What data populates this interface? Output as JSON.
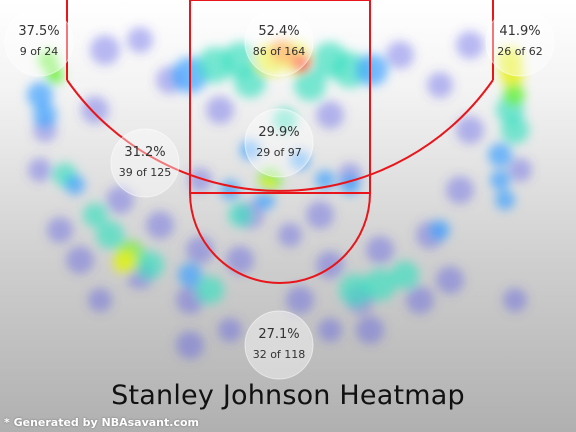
{
  "chart_data": {
    "type": "heatmap",
    "title": "Stanley Johnson Heatmap",
    "credit": "* Generated by NBAsavant.com",
    "scale_colors": [
      "#4a4ae8",
      "#3aa0ff",
      "#3ee0c0",
      "#6cf040",
      "#e8f020",
      "#ff9020",
      "#ff2a1a"
    ],
    "court_color": "#e8161b",
    "zones": [
      {
        "id": "left-corner-three",
        "pct": "37.5%",
        "made_of_attempts": "9 of 24"
      },
      {
        "id": "restricted-area",
        "pct": "52.4%",
        "made_of_attempts": "86 of 164"
      },
      {
        "id": "right-corner-three",
        "pct": "41.9%",
        "made_of_attempts": "26 of 62"
      },
      {
        "id": "left-mid-range",
        "pct": "31.2%",
        "made_of_attempts": "39 of 125"
      },
      {
        "id": "paint-non-ra",
        "pct": "29.9%",
        "made_of_attempts": "29 of 97"
      },
      {
        "id": "above-break-three",
        "pct": "27.1%",
        "made_of_attempts": "32 of 118"
      }
    ]
  }
}
